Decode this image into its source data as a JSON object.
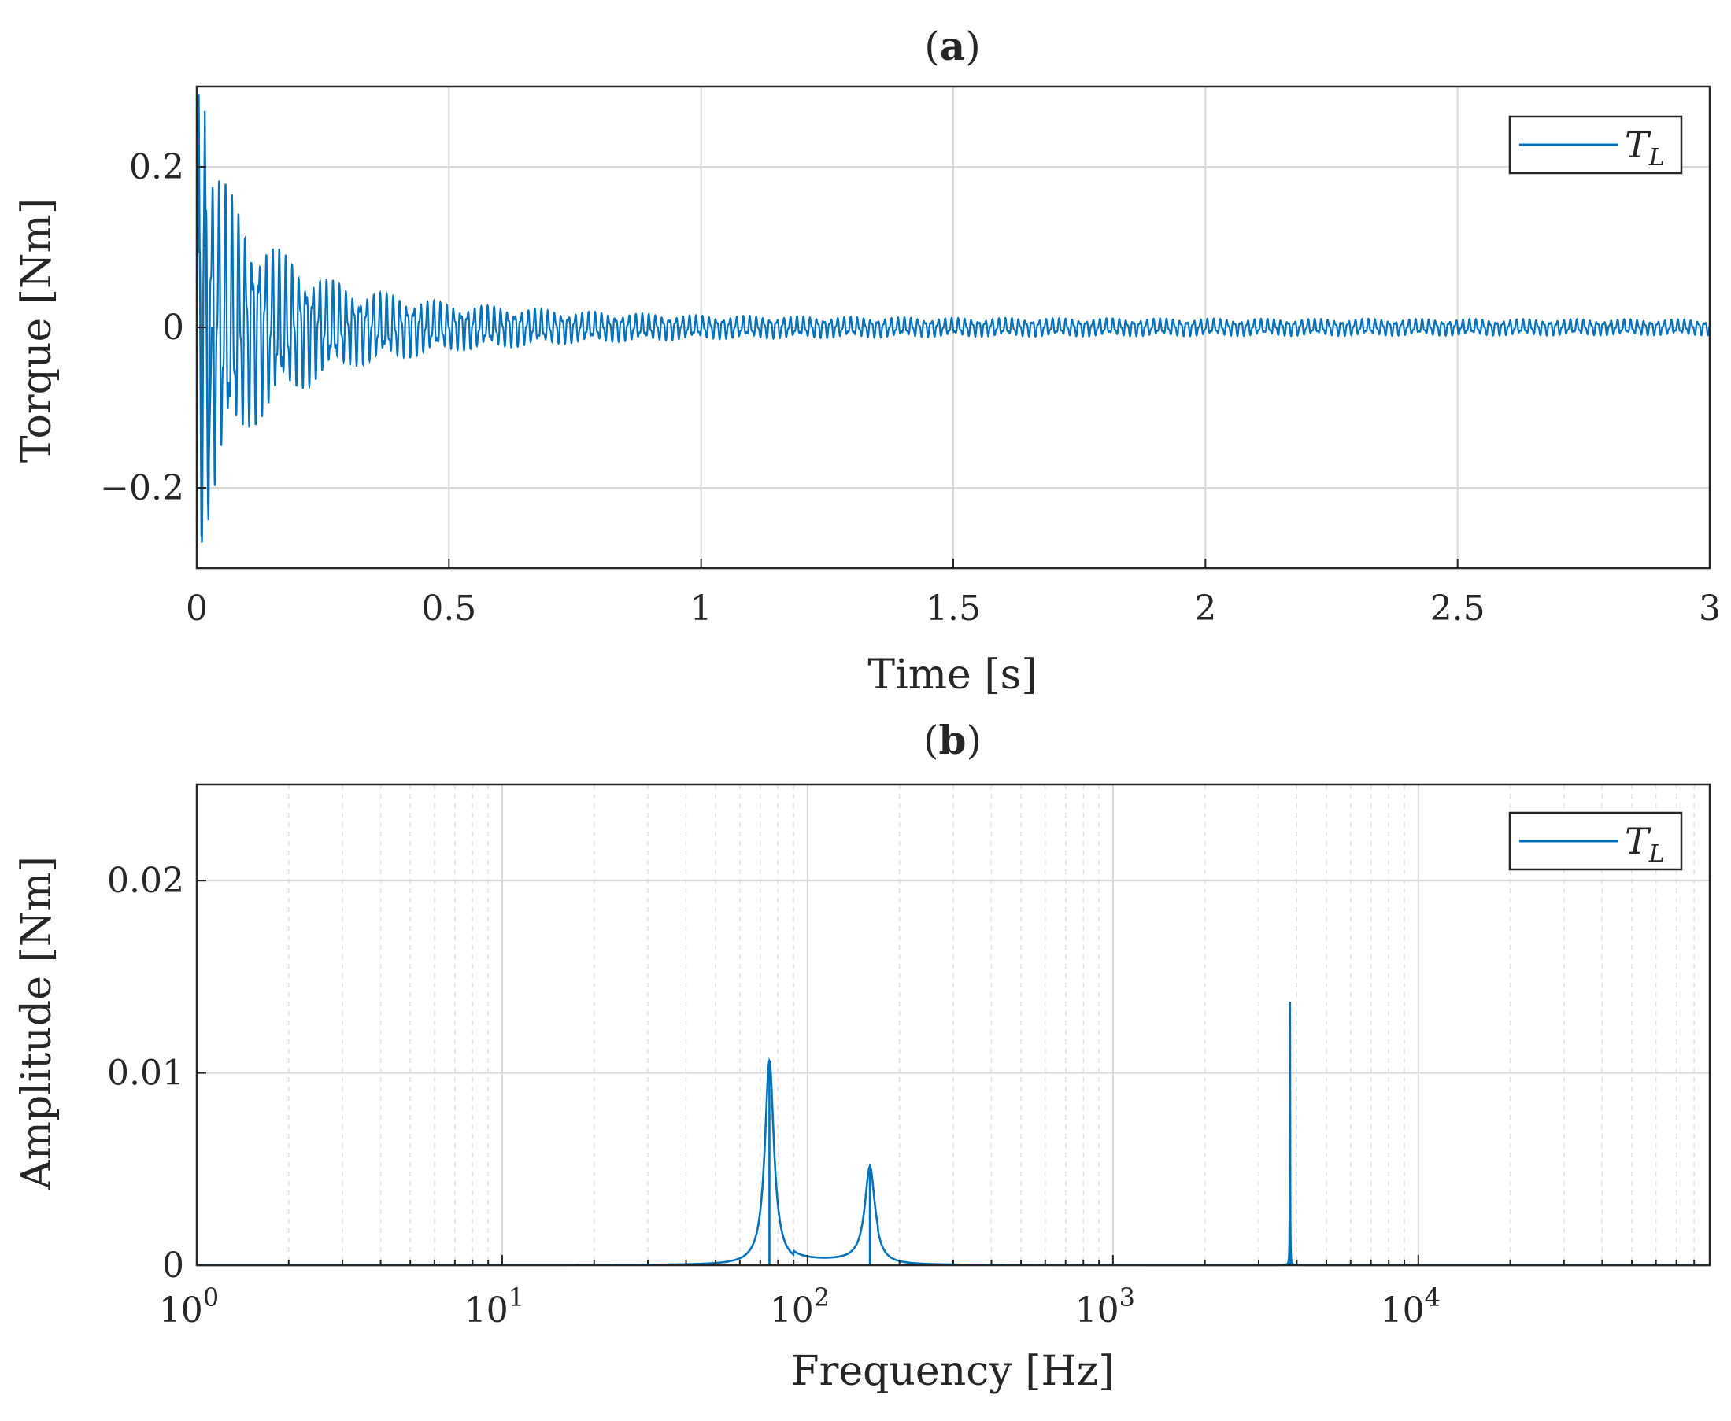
{
  "chart_data": [
    {
      "id": "a",
      "type": "line",
      "title_paren_open": "(",
      "title_letter": "a",
      "title_paren_close": ")",
      "xlabel": "Time [s]",
      "ylabel": "Torque [Nm]",
      "xlim": [
        0,
        3
      ],
      "ylim": [
        -0.3,
        0.3
      ],
      "xticks": [
        0,
        0.5,
        1,
        1.5,
        2,
        2.5,
        3
      ],
      "xtick_labels": [
        "0",
        "0.5",
        "1",
        "1.5",
        "2",
        "2.5",
        "3"
      ],
      "yticks": [
        -0.2,
        0,
        0.2
      ],
      "ytick_labels": [
        "−0.2",
        "0",
        "0.2"
      ],
      "grid": true,
      "legend": {
        "label_main": "T",
        "label_sub": "L",
        "location": "top-right"
      },
      "series": [
        {
          "name": "T_L",
          "color": "#0072BD",
          "kind": "damped-oscillation",
          "peak_positive": 0.29,
          "peak_negative": -0.26,
          "envelope": [
            [
              0,
              0.29
            ],
            [
              0.05,
              0.19
            ],
            [
              0.1,
              0.13
            ],
            [
              0.2,
              0.08
            ],
            [
              0.3,
              0.05
            ],
            [
              0.5,
              0.03
            ],
            [
              0.75,
              0.02
            ],
            [
              1.0,
              0.015
            ],
            [
              1.5,
              0.012
            ],
            [
              2.0,
              0.011
            ],
            [
              3.0,
              0.01
            ]
          ],
          "dominant_frequency_hz": 75
        }
      ]
    },
    {
      "id": "b",
      "type": "line",
      "title_paren_open": "(",
      "title_letter": "b",
      "title_paren_close": ")",
      "xlabel": "Frequency [Hz]",
      "ylabel": "Amplitude [Nm]",
      "xscale": "log",
      "xlim": [
        1,
        90000
      ],
      "ylim": [
        0,
        0.025
      ],
      "xtick_exponents": [
        "0",
        "1",
        "2",
        "3",
        "4"
      ],
      "xtick_base": "10",
      "yticks": [
        0,
        0.01,
        0.02
      ],
      "ytick_labels": [
        "0",
        "0.01",
        "0.02"
      ],
      "grid": true,
      "minor_grid": true,
      "legend": {
        "label_main": "T",
        "label_sub": "L",
        "location": "top-right"
      },
      "series": [
        {
          "name": "T_L",
          "color": "#0072BD",
          "peaks": [
            {
              "frequency_hz": 75,
              "amplitude": 0.0106
            },
            {
              "frequency_hz": 160,
              "amplitude": 0.0049
            },
            {
              "frequency_hz": 3800,
              "amplitude": 0.0137
            }
          ]
        }
      ]
    }
  ]
}
